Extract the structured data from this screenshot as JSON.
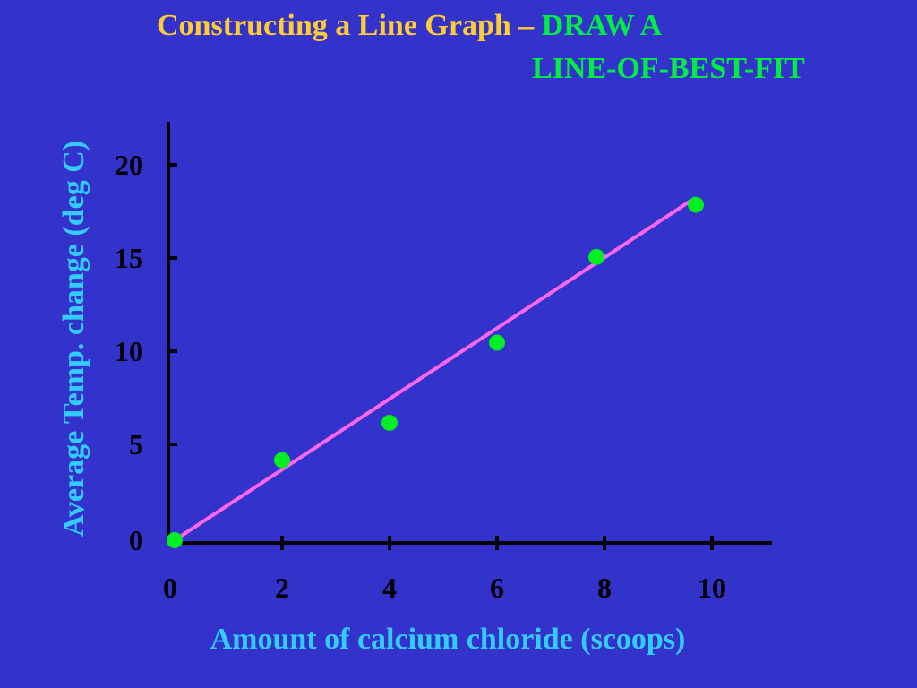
{
  "slide": {
    "title_part1": "Constructing a Line Graph –",
    "title_part2": "DRAW A",
    "title_line2": "LINE-OF-BEST-FIT"
  },
  "colors": {
    "background": "#3333cc",
    "title_primary": "#ffcc33",
    "title_accent": "#00ee44",
    "axis_label": "#33ccff",
    "data_points": "#00ee22",
    "best_fit_line": "#ff66ee",
    "axes": "#000000"
  },
  "chart_data": {
    "type": "scatter",
    "title": "",
    "xlabel": "Amount of calcium chloride (scoops)",
    "ylabel": "Average Temp. change (deg C)",
    "xlim": [
      0,
      11
    ],
    "ylim": [
      0,
      22
    ],
    "xticks": [
      0,
      2,
      4,
      6,
      8,
      10
    ],
    "yticks": [
      0,
      5,
      10,
      15,
      20
    ],
    "grid": false,
    "legend": "none",
    "points": [
      {
        "x": 0,
        "y": 0
      },
      {
        "x": 2,
        "y": 4.3
      },
      {
        "x": 4,
        "y": 6.3
      },
      {
        "x": 6,
        "y": 10.6
      },
      {
        "x": 7.85,
        "y": 15.2
      },
      {
        "x": 9.7,
        "y": 18
      }
    ],
    "best_fit": {
      "x1": 0,
      "y1": 0,
      "x2": 9.65,
      "y2": 18.3
    }
  }
}
